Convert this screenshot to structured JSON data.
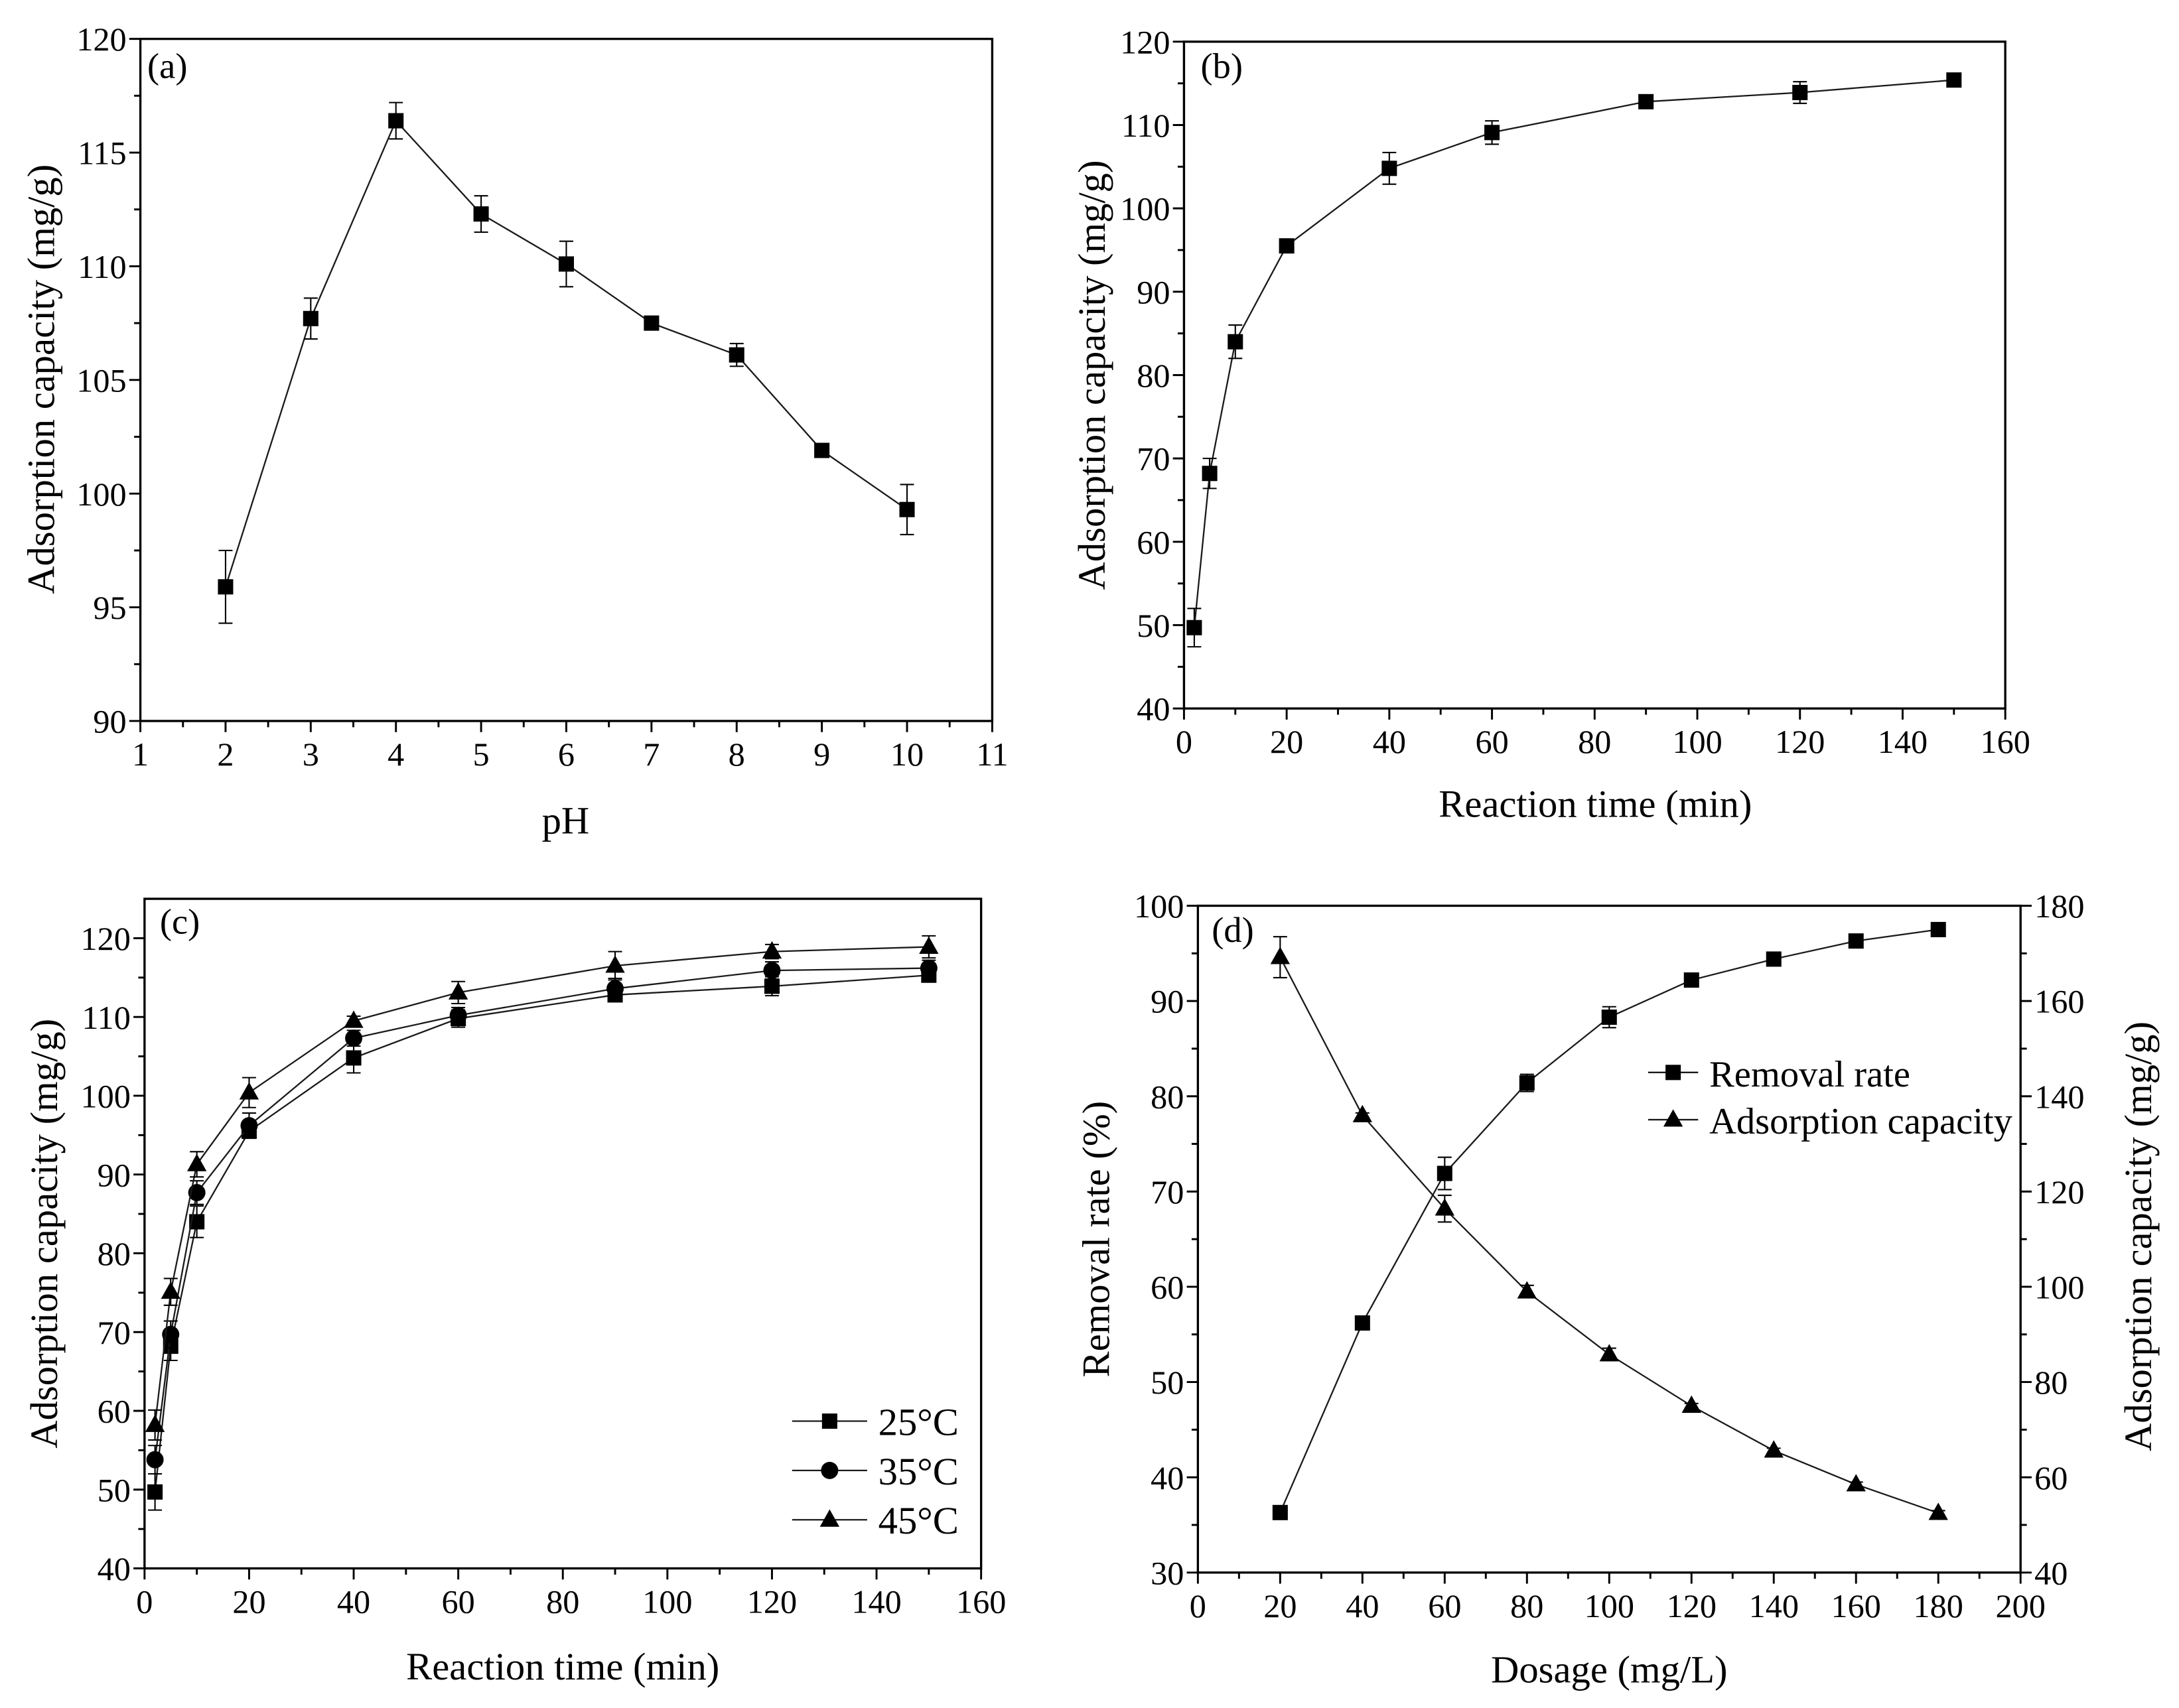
{
  "chart_data": [
    {
      "panel_label": "(a)",
      "type": "line",
      "xlabel": "pH",
      "ylabel": "Adsorption capacity (mg/g)",
      "xlim": [
        1,
        11
      ],
      "ylim": [
        90,
        120
      ],
      "x_ticks": [
        1,
        2,
        3,
        4,
        5,
        6,
        7,
        8,
        9,
        10,
        11
      ],
      "y_ticks": [
        90,
        95,
        100,
        105,
        110,
        115,
        120
      ],
      "grid": false,
      "x": [
        2,
        3,
        4,
        5,
        6,
        7,
        8,
        9,
        10
      ],
      "series": [
        {
          "marker": "square",
          "values": [
            95.9,
            107.7,
            116.4,
            112.3,
            110.1,
            107.5,
            106.1,
            101.9,
            99.3
          ],
          "errors": [
            1.6,
            0.9,
            0.8,
            0.8,
            1.0,
            0.2,
            0.5,
            0.2,
            1.1
          ]
        }
      ]
    },
    {
      "panel_label": "(b)",
      "type": "line",
      "xlabel": "Reaction time (min)",
      "ylabel": "Adsorption capacity (mg/g)",
      "xlim": [
        0,
        160
      ],
      "ylim": [
        40,
        120
      ],
      "x_ticks": [
        0,
        20,
        40,
        60,
        80,
        100,
        120,
        140,
        160
      ],
      "y_ticks": [
        40,
        50,
        60,
        70,
        80,
        90,
        100,
        110,
        120
      ],
      "grid": false,
      "x": [
        2,
        5,
        10,
        20,
        40,
        60,
        90,
        120,
        150
      ],
      "series": [
        {
          "marker": "square",
          "values": [
            49.7,
            68.2,
            84.0,
            95.5,
            104.8,
            109.1,
            112.8,
            113.9,
            115.4
          ],
          "errors": [
            2.3,
            1.8,
            2.0,
            0.4,
            1.9,
            1.4,
            0.4,
            1.3,
            0.8
          ]
        }
      ]
    },
    {
      "panel_label": "(c)",
      "type": "line",
      "xlabel": "Reaction time (min)",
      "ylabel": "Adsorption capacity (mg/g)",
      "xlim": [
        0,
        160
      ],
      "ylim": [
        40,
        125
      ],
      "x_ticks": [
        0,
        20,
        40,
        60,
        80,
        100,
        120,
        140,
        160
      ],
      "y_ticks": [
        40,
        50,
        60,
        70,
        80,
        90,
        100,
        110,
        120
      ],
      "grid": false,
      "legend": "bottom-right",
      "x": [
        2,
        5,
        10,
        20,
        40,
        60,
        90,
        120,
        150
      ],
      "series": [
        {
          "name": "25°C",
          "marker": "square",
          "values": [
            49.7,
            68.2,
            84.0,
            95.5,
            104.8,
            109.8,
            112.8,
            113.9,
            115.3
          ],
          "errors": [
            2.3,
            1.8,
            2.0,
            0.8,
            1.9,
            1.1,
            0.8,
            1.2,
            0.8
          ]
        },
        {
          "name": "35°C",
          "marker": "circle",
          "values": [
            53.8,
            69.7,
            87.7,
            96.2,
            107.3,
            110.2,
            113.6,
            115.9,
            116.2
          ],
          "errors": [
            1.8,
            1.7,
            1.5,
            1.6,
            1.0,
            1.0,
            1.3,
            1.1,
            1.0
          ]
        },
        {
          "name": "45°C",
          "marker": "triangle",
          "values": [
            58.2,
            75.1,
            91.3,
            100.4,
            109.5,
            113.1,
            116.5,
            118.3,
            118.9
          ],
          "errors": [
            1.9,
            1.7,
            1.6,
            1.9,
            0.6,
            1.4,
            1.8,
            0.9,
            1.4
          ]
        }
      ]
    },
    {
      "panel_label": "(d)",
      "type": "line",
      "xlabel": "Dosage (mg/L)",
      "ylabel": "Removal rate (%)",
      "y2label": "Adsorption capacity (mg/g)",
      "xlim": [
        0,
        200
      ],
      "ylim": [
        30,
        100
      ],
      "y2lim": [
        40,
        180
      ],
      "x_ticks": [
        0,
        20,
        40,
        60,
        80,
        100,
        120,
        140,
        160,
        180,
        200
      ],
      "y_ticks": [
        30,
        40,
        50,
        60,
        70,
        80,
        90,
        100
      ],
      "y2_ticks": [
        40,
        60,
        80,
        100,
        120,
        140,
        160,
        180
      ],
      "grid": false,
      "legend": "upper-right",
      "x": [
        20,
        40,
        60,
        80,
        100,
        120,
        140,
        160,
        180
      ],
      "series": [
        {
          "name": "Removal rate",
          "axis": "left",
          "marker": "square",
          "values": [
            36.3,
            56.2,
            71.9,
            81.4,
            88.3,
            92.2,
            94.4,
            96.3,
            97.5
          ],
          "errors": [
            0.7,
            0.3,
            1.7,
            0.9,
            1.1,
            0.3,
            0.3,
            0.3,
            0.3
          ]
        },
        {
          "name": "Adsorption capacity",
          "axis": "right",
          "marker": "triangle",
          "values": [
            169.2,
            136.0,
            116.4,
            99.0,
            85.8,
            75.0,
            65.6,
            58.5,
            52.5
          ],
          "errors": [
            4.3,
            0.5,
            2.8,
            1.3,
            1.3,
            0.5,
            0.5,
            0.5,
            0.5
          ]
        }
      ]
    }
  ]
}
